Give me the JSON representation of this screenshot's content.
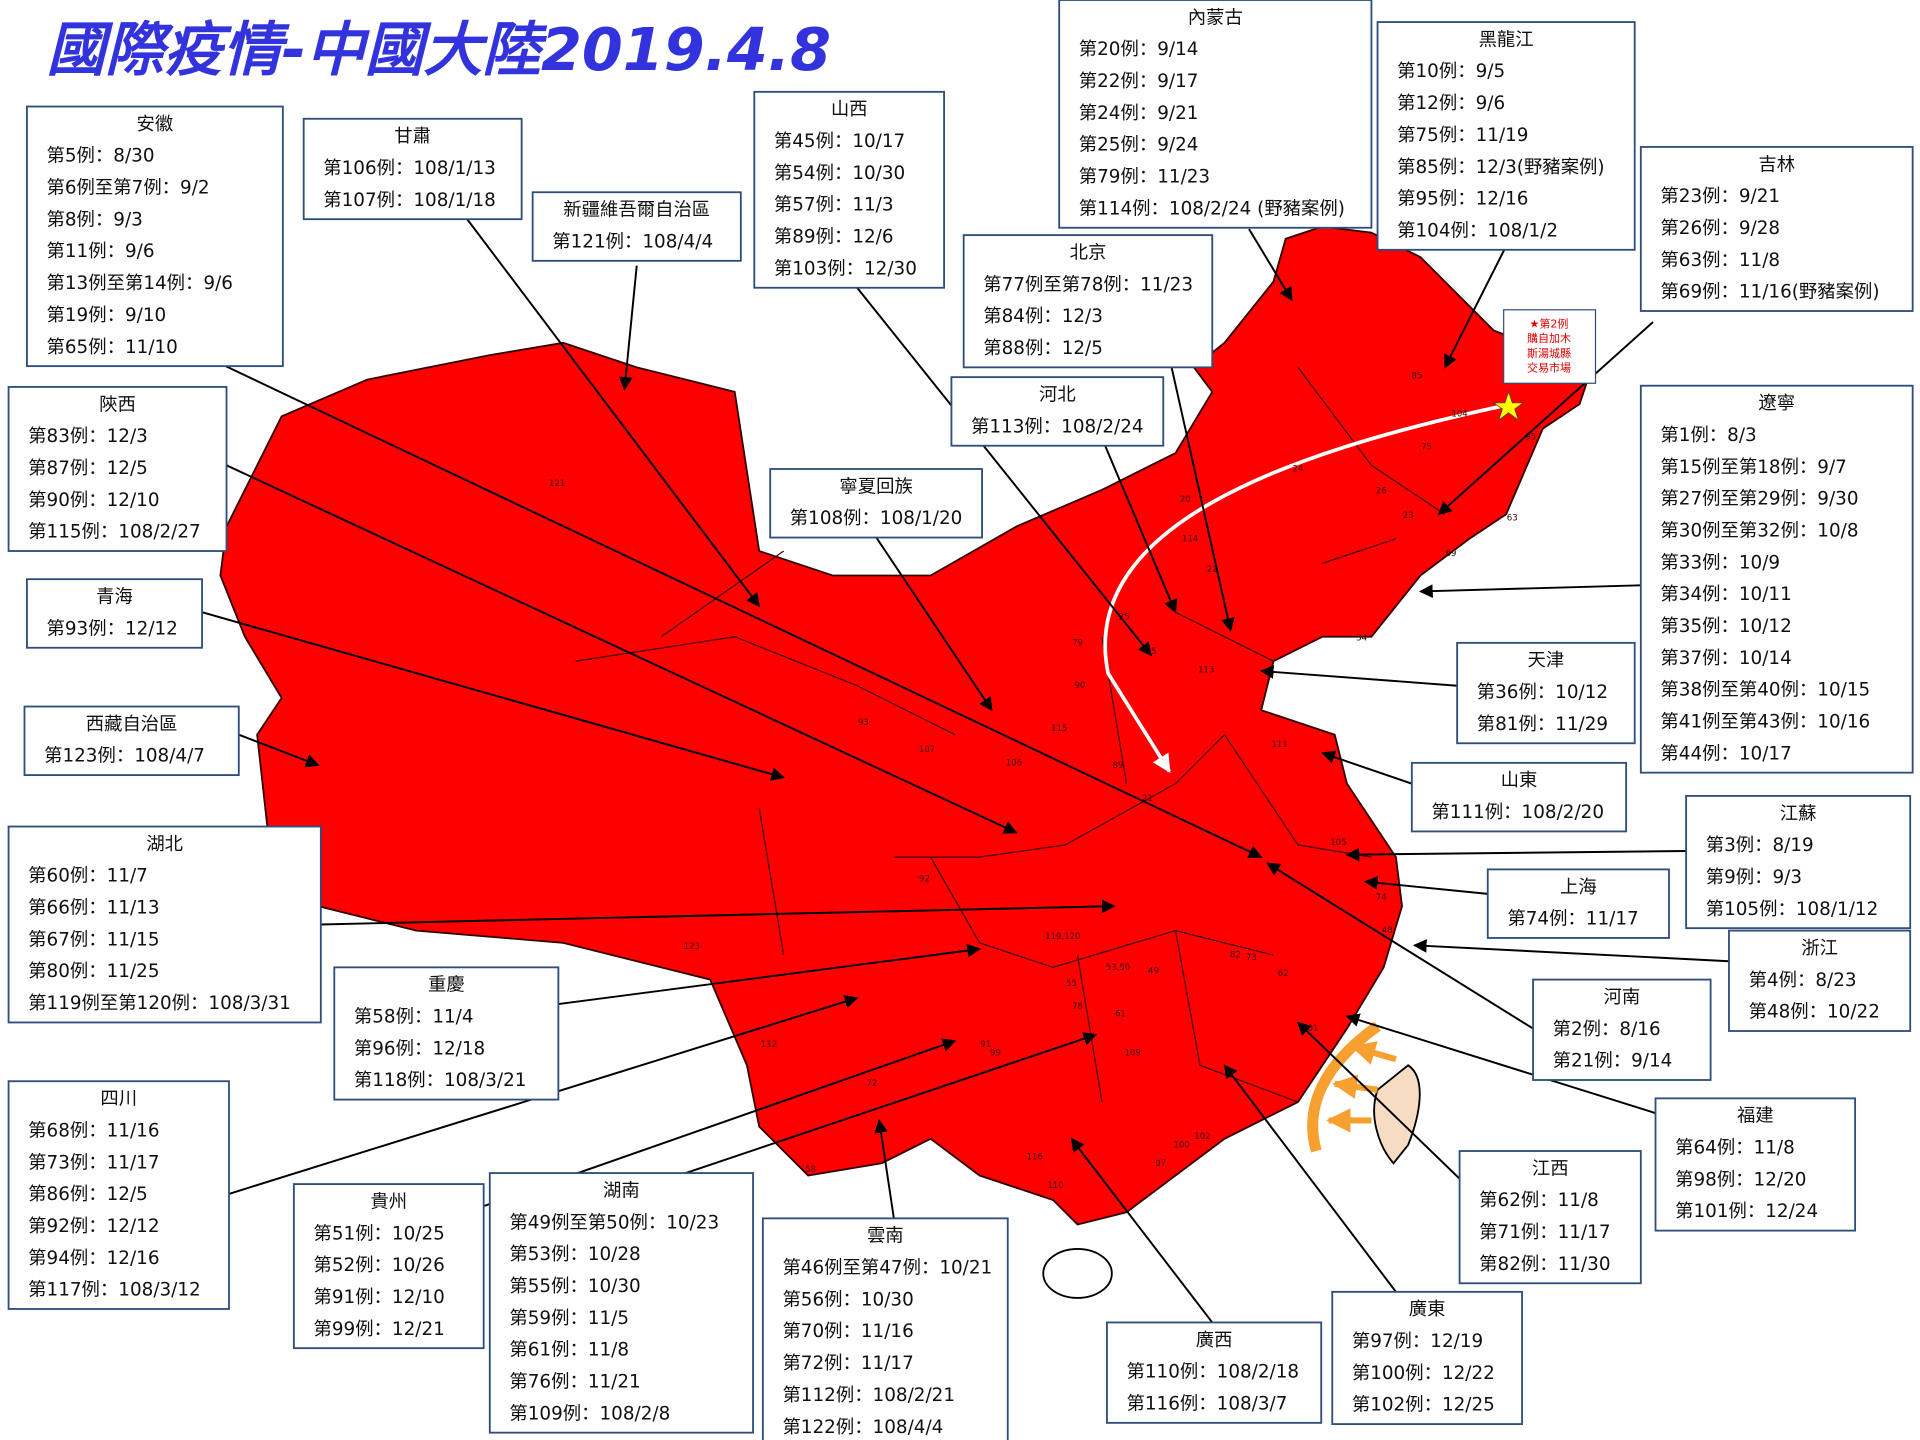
{
  "title": "國際疫情-中國大陸2019.4.8",
  "boxes": [
    {
      "region": "安徽",
      "lines": [
        "第5例：8/30",
        "第6例至第7例：9/2",
        "第8例：9/3",
        "第11例：9/6",
        "第13例至第14例：9/6",
        "第19例：9/10",
        "第65例：11/10"
      ]
    },
    {
      "region": "甘肅",
      "lines": [
        "第106例：108/1/13",
        "第107例：108/1/18"
      ]
    },
    {
      "region": "新疆維吾爾自治區",
      "lines": [
        "第121例：108/4/4"
      ]
    },
    {
      "region": "山西",
      "lines": [
        "第45例：10/17",
        "第54例：10/30",
        "第57例：11/3",
        "第89例：12/6",
        "第103例：12/30"
      ]
    },
    {
      "region": "內蒙古",
      "lines": [
        "第20例：9/14",
        "第22例：9/17",
        "第24例：9/21",
        "第25例：9/24",
        "第79例：11/23",
        "第114例：108/2/24 (野豬案例)"
      ]
    },
    {
      "region": "黑龍江",
      "lines": [
        "第10例：9/5",
        "第12例：9/6",
        "第75例：11/19",
        "第85例：12/3(野豬案例)",
        "第95例：12/16",
        "第104例：108/1/2"
      ]
    },
    {
      "region": "吉林",
      "lines": [
        "第23例：9/21",
        "第26例：9/28",
        "第63例：11/8",
        "第69例：11/16(野豬案例)"
      ]
    },
    {
      "region": "北京",
      "lines": [
        "第77例至第78例：11/23",
        "第84例：12/3",
        "第88例：12/5"
      ]
    },
    {
      "region": "河北",
      "lines": [
        "第113例：108/2/24"
      ]
    },
    {
      "region": "寧夏回族",
      "lines": [
        "第108例：108/1/20"
      ]
    },
    {
      "region": "陝西",
      "lines": [
        "第83例：12/3",
        "第87例：12/5",
        "第90例：12/10",
        "第115例：108/2/27"
      ]
    },
    {
      "region": "青海",
      "lines": [
        "第93例：12/12"
      ]
    },
    {
      "region": "西藏自治區",
      "lines": [
        "第123例：108/4/7"
      ]
    },
    {
      "region": "湖北",
      "lines": [
        "第60例：11/7",
        "第66例：11/13",
        "第67例：11/15",
        "第80例：11/25",
        "第119例至第120例：108/3/31"
      ]
    },
    {
      "region": "重慶",
      "lines": [
        "第58例：11/4",
        "第96例：12/18",
        "第118例：108/3/21"
      ]
    },
    {
      "region": "四川",
      "lines": [
        "第68例：11/16",
        "第73例：11/17",
        "第86例：12/5",
        "第92例：12/12",
        "第94例：12/16",
        "第117例：108/3/12"
      ]
    },
    {
      "region": "貴州",
      "lines": [
        "第51例：10/25",
        "第52例：10/26",
        "第91例：12/10",
        "第99例：12/21"
      ]
    },
    {
      "region": "湖南",
      "lines": [
        "第49例至第50例：10/23",
        "第53例：10/28",
        "第55例：10/30",
        "第59例：11/5",
        "第61例：11/8",
        "第76例：11/21",
        "第109例：108/2/8"
      ]
    },
    {
      "region": "雲南",
      "lines": [
        "第46例至第47例：10/21",
        "第56例：10/30",
        "第70例：11/16",
        "第72例：11/17",
        "第112例：108/2/21",
        "第122例：108/4/4"
      ]
    },
    {
      "region": "廣西",
      "lines": [
        "第110例：108/2/18",
        "第116例：108/3/7"
      ]
    },
    {
      "region": "廣東",
      "lines": [
        "第97例：12/19",
        "第100例：12/22",
        "第102例：12/25"
      ]
    },
    {
      "region": "江西",
      "lines": [
        "第62例：11/8",
        "第71例：11/17",
        "第82例：11/30"
      ]
    },
    {
      "region": "福建",
      "lines": [
        "第64例：11/8",
        "第98例：12/20",
        "第101例：12/24"
      ]
    },
    {
      "region": "河南",
      "lines": [
        "第2例：8/16",
        "第21例：9/14"
      ]
    },
    {
      "region": "浙江",
      "lines": [
        "第4例：8/23",
        "第48例：10/22"
      ]
    },
    {
      "region": "上海",
      "lines": [
        "第74例：11/17"
      ]
    },
    {
      "region": "江蘇",
      "lines": [
        "第3例：8/19",
        "第9例：9/3",
        "第105例：108/1/12"
      ]
    },
    {
      "region": "山東",
      "lines": [
        "第111例：108/2/20"
      ]
    },
    {
      "region": "天津",
      "lines": [
        "第36例：10/12",
        "第81例：11/29"
      ]
    },
    {
      "region": "遼寧",
      "lines": [
        "第1例：8/3",
        "第15例至第18例：9/7",
        "第27例至第29例：9/30",
        "第30例至第32例：10/8",
        "第33例：10/9",
        "第34例：10/11",
        "第35例：10/12",
        "第37例：10/14",
        "第38例至第40例：10/15",
        "第41例至第43例：10/16",
        "第44例：10/17"
      ]
    }
  ],
  "star_note": {
    "lines": [
      "★第2例",
      "購自加木",
      "斯湯城縣",
      "交易市場"
    ]
  },
  "map_labels": [
    "121",
    "93",
    "123",
    "107",
    "106",
    "85",
    "104",
    "75",
    "95",
    "63",
    "114",
    "111",
    "105",
    "116",
    "110",
    "97",
    "102",
    "100",
    "101",
    "72",
    "58",
    "112",
    "109",
    "61",
    "92",
    "90",
    "89",
    "25",
    "45",
    "79",
    "115",
    "113",
    "20",
    "22",
    "24",
    "26",
    "23",
    "69",
    "21",
    "62",
    "73",
    "82",
    "49",
    "53,50",
    "55",
    "78",
    "91",
    "99",
    "34",
    "48",
    "74",
    "119,120"
  ]
}
